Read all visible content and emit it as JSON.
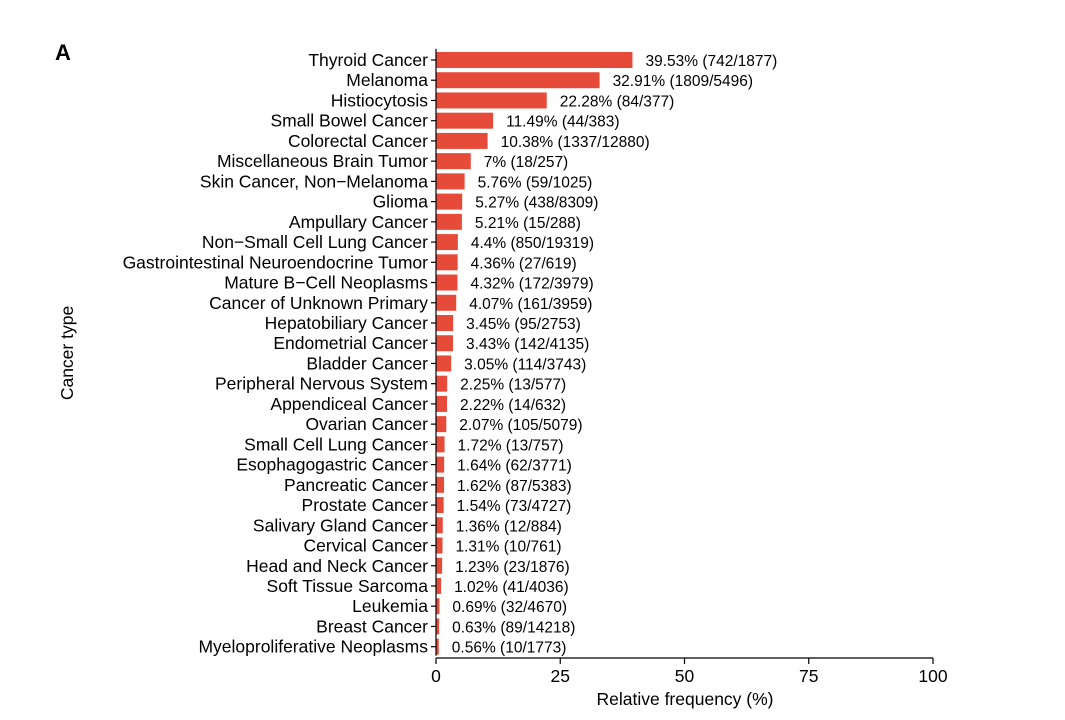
{
  "panel_label": "A",
  "chart_data": {
    "type": "bar",
    "orientation": "horizontal",
    "xlabel": "Relative frequency (%)",
    "ylabel": "Cancer type",
    "xlim": [
      0,
      100
    ],
    "xticks": [
      0,
      25,
      50,
      75,
      100
    ],
    "bar_color": "#e64a38",
    "categories": [
      "Thyroid Cancer",
      "Melanoma",
      "Histiocytosis",
      "Small Bowel Cancer",
      "Colorectal Cancer",
      "Miscellaneous Brain Tumor",
      "Skin Cancer, Non−Melanoma",
      "Glioma",
      "Ampullary Cancer",
      "Non−Small Cell Lung Cancer",
      "Gastrointestinal Neuroendocrine Tumor",
      "Mature B−Cell Neoplasms",
      "Cancer of Unknown Primary",
      "Hepatobiliary Cancer",
      "Endometrial Cancer",
      "Bladder Cancer",
      "Peripheral Nervous System",
      "Appendiceal Cancer",
      "Ovarian Cancer",
      "Small Cell Lung Cancer",
      "Esophagogastric Cancer",
      "Pancreatic Cancer",
      "Prostate Cancer",
      "Salivary Gland Cancer",
      "Cervical Cancer",
      "Head and Neck Cancer",
      "Soft Tissue Sarcoma",
      "Leukemia",
      "Breast Cancer",
      "Myeloproliferative Neoplasms"
    ],
    "values": [
      39.53,
      32.91,
      22.28,
      11.49,
      10.38,
      7,
      5.76,
      5.27,
      5.21,
      4.4,
      4.36,
      4.32,
      4.07,
      3.45,
      3.43,
      3.05,
      2.25,
      2.22,
      2.07,
      1.72,
      1.64,
      1.62,
      1.54,
      1.36,
      1.31,
      1.23,
      1.02,
      0.69,
      0.63,
      0.56
    ],
    "data_labels": [
      "39.53% (742/1877)",
      "32.91% (1809/5496)",
      "22.28% (84/377)",
      "11.49% (44/383)",
      "10.38% (1337/12880)",
      "7% (18/257)",
      "5.76% (59/1025)",
      "5.27% (438/8309)",
      "5.21% (15/288)",
      "4.4% (850/19319)",
      "4.36% (27/619)",
      "4.32% (172/3979)",
      "4.07% (161/3959)",
      "3.45% (95/2753)",
      "3.43% (142/4135)",
      "3.05% (114/3743)",
      "2.25% (13/577)",
      "2.22% (14/632)",
      "2.07% (105/5079)",
      "1.72% (13/757)",
      "1.64% (62/3771)",
      "1.62% (87/5383)",
      "1.54% (73/4727)",
      "1.36% (12/884)",
      "1.31% (10/761)",
      "1.23% (23/1876)",
      "1.02% (41/4036)",
      "0.69% (32/4670)",
      "0.63% (89/14218)",
      "0.56% (10/1773)"
    ]
  }
}
